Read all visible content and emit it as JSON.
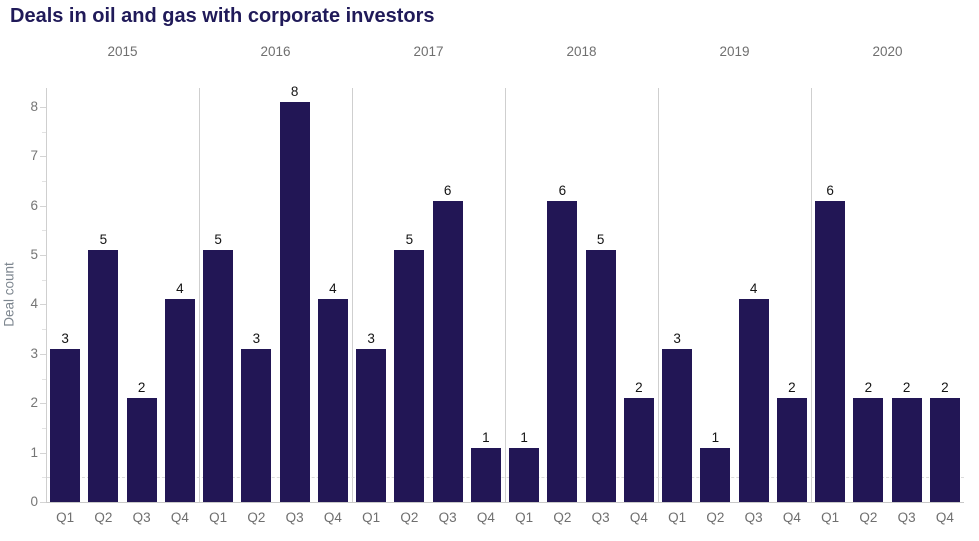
{
  "header": {
    "title": "Deals in oil and gas with corporate investors"
  },
  "chart_data": {
    "type": "bar",
    "title": "Deals in oil and gas with corporate investors",
    "xlabel": "",
    "ylabel": "Deal count",
    "ylim": [
      0,
      8.4
    ],
    "y_ticks": [
      0,
      1,
      2,
      3,
      4,
      5,
      6,
      7,
      8
    ],
    "grid": "no horizontal gridlines; faint dashed line near 0.5; vertical separators between year groups",
    "legend_position": "none",
    "bar_color": "#221655",
    "value_labels_shown": true,
    "groups": [
      {
        "year": "2015",
        "categories": [
          "Q1",
          "Q2",
          "Q3",
          "Q4"
        ],
        "values": [
          3,
          5,
          2,
          4
        ]
      },
      {
        "year": "2016",
        "categories": [
          "Q1",
          "Q2",
          "Q3",
          "Q4"
        ],
        "values": [
          5,
          3,
          8,
          4
        ]
      },
      {
        "year": "2017",
        "categories": [
          "Q1",
          "Q2",
          "Q3",
          "Q4"
        ],
        "values": [
          3,
          5,
          6,
          1
        ]
      },
      {
        "year": "2018",
        "categories": [
          "Q1",
          "Q2",
          "Q3",
          "Q4"
        ],
        "values": [
          1,
          6,
          5,
          2
        ]
      },
      {
        "year": "2019",
        "categories": [
          "Q1",
          "Q2",
          "Q3",
          "Q4"
        ],
        "values": [
          3,
          1,
          4,
          2
        ]
      },
      {
        "year": "2020",
        "categories": [
          "Q1",
          "Q2",
          "Q3",
          "Q4"
        ],
        "values": [
          6,
          2,
          2,
          2
        ]
      }
    ]
  },
  "colors": {
    "bar": "#221655",
    "title_text": "#201a59",
    "axis_text": "#757575",
    "category_text": "#6f6f6f",
    "ylabel_text": "#7d868f",
    "value_text": "#141414",
    "axis_line": "#cfcfcf"
  }
}
